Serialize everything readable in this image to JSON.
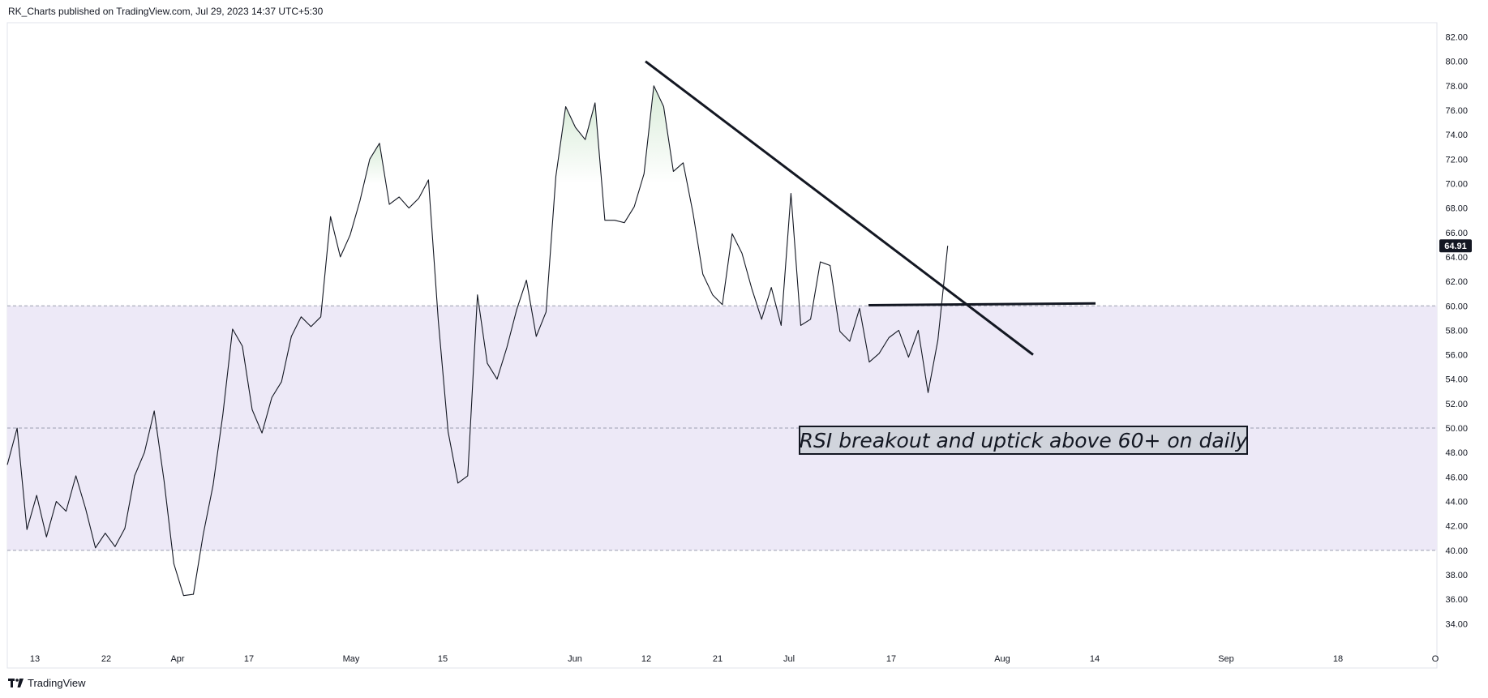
{
  "header": {
    "publish_text": "RK_Charts published on TradingView.com, Jul 29, 2023 14:37 UTC+5:30"
  },
  "footer": {
    "brand_label": "TradingView",
    "brand_logo_text": "17"
  },
  "annotation": {
    "text": "RSI breakout and uptick above 60+ on daily"
  },
  "colors": {
    "line": "#131722",
    "band_fill": "#ede9f7",
    "band_border": "#9b9fb0",
    "overbought_fill": "#d9ecd9",
    "price_label_bg": "#131722",
    "price_label_text": "#ffffff",
    "annotation_bg": "#d1d4dc"
  },
  "chart_data": {
    "type": "line",
    "title": "",
    "xlabel": "",
    "ylabel": "",
    "ylim": [
      32.5,
      83.5
    ],
    "y_ticks": [
      34,
      36,
      38,
      40,
      42,
      44,
      46,
      48,
      50,
      52,
      54,
      56,
      58,
      60,
      62,
      64,
      66,
      68,
      70,
      72,
      74,
      76,
      78,
      80,
      82
    ],
    "x_tick_labels": [
      "13",
      "22",
      "Apr",
      "17",
      "May",
      "15",
      "Jun",
      "12",
      "21",
      "Jul",
      "17",
      "Aug",
      "14",
      "Sep",
      "18",
      "O"
    ],
    "last_value_label": "64.91",
    "grid": false,
    "band": {
      "lower": 40,
      "upper": 60,
      "middle": 50
    },
    "series": [
      {
        "values": [
          47,
          50,
          41.7,
          44.5,
          41.1,
          44,
          43.2,
          46.1,
          43.4,
          40.2,
          41.4,
          40.3,
          41.8,
          46.1,
          48,
          51.4,
          45.7,
          38.9,
          36.3,
          36.4,
          41.3,
          45.3,
          51.1,
          58.1,
          56.7,
          51.5,
          49.6,
          52.5,
          53.8,
          57.5,
          59.1,
          58.3,
          59.1,
          67.3,
          64,
          65.8,
          68.6,
          72,
          73.3,
          68.3,
          68.9,
          68,
          68.8,
          70.3,
          58.8,
          49.7,
          45.5,
          46.1,
          60.9,
          55.3,
          54,
          56.6,
          59.7,
          62.1,
          57.5,
          59.5,
          70.6,
          76.3,
          74.6,
          73.6,
          76.6,
          67,
          67,
          66.8,
          68.1,
          70.8,
          78,
          76.3,
          71,
          71.7,
          67.6,
          62.6,
          60.9,
          60.1,
          65.9,
          64.3,
          61.4,
          58.9,
          61.5,
          58.4,
          69.2,
          58.4,
          58.9,
          63.6,
          63.3,
          57.9,
          57.1,
          59.8,
          55.4,
          56.1,
          57.4,
          58,
          55.8,
          58,
          52.9,
          57.2,
          64.91
        ]
      }
    ],
    "trendline": {
      "start": 80,
      "end": 56,
      "label": ""
    },
    "horizontal_line": {
      "value": 60.05,
      "end_value": 60.2
    }
  }
}
